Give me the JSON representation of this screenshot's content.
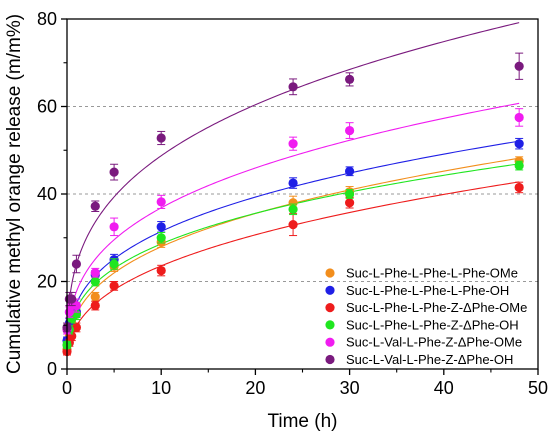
{
  "chart_data": {
    "type": "scatter",
    "title": "",
    "xlabel": "Time (h)",
    "ylabel": "Cumulative methyl orange release (m/m%)",
    "xlim": [
      0,
      50
    ],
    "ylim": [
      0,
      80
    ],
    "xticks": [
      0,
      10,
      20,
      30,
      40,
      50
    ],
    "yticks": [
      0,
      20,
      40,
      60,
      80
    ],
    "grid": "horizontal dashed at 20, 40, 60",
    "legend_position": "bottom-right",
    "x": [
      0,
      0.25,
      0.5,
      1,
      3,
      5,
      10,
      24,
      30,
      48
    ],
    "series": [
      {
        "name": "Suc-L-Phe-L-Phe-L-Phe-OMe",
        "color": "#f28e1c",
        "values": [
          4.5,
          7.5,
          10.5,
          12.5,
          16.5,
          23.5,
          29,
          38,
          40.5,
          47.5
        ],
        "errors": [
          0.8,
          1.0,
          1.0,
          1.2,
          1.0,
          1.2,
          1.2,
          1.5,
          1.2,
          1.0
        ]
      },
      {
        "name": "Suc-L-Phe-L-Phe-L-Phe-OH",
        "color": "#1f1fe6",
        "values": [
          6.5,
          10.5,
          12,
          13,
          21.5,
          25,
          32.5,
          42.5,
          45.2,
          51.5
        ],
        "errors": [
          0.8,
          1.0,
          1.0,
          1.2,
          1.0,
          1.2,
          1.2,
          1.2,
          1.0,
          1.2
        ]
      },
      {
        "name": "Suc-L-Phe-L-Phe-Z-ΔPhe-OMe",
        "color": "#ee1c1c",
        "values": [
          4,
          6,
          7.5,
          9.5,
          14.5,
          19,
          22.5,
          33,
          38,
          41.5
        ],
        "errors": [
          0.8,
          0.8,
          1.0,
          1.0,
          1.0,
          1.0,
          1.2,
          2.5,
          1.2,
          1.2
        ]
      },
      {
        "name": "Suc-L-Phe-L-Phe-Z-ΔPhe-OH",
        "color": "#1fe61f",
        "values": [
          5.5,
          9,
          11.5,
          12.5,
          20,
          24,
          30,
          36.5,
          40,
          46.5
        ],
        "errors": [
          0.8,
          1.0,
          1.0,
          1.2,
          1.0,
          1.2,
          1.2,
          1.2,
          1.0,
          1.0
        ]
      },
      {
        "name": "Suc-L-Val-L-Phe-Z-ΔPhe-OMe",
        "color": "#f01cf0",
        "values": [
          9,
          13,
          14.5,
          14.5,
          22,
          32.5,
          38.2,
          51.5,
          54.5,
          57.5
        ],
        "errors": [
          1.0,
          1.2,
          1.2,
          1.5,
          1.0,
          2.0,
          1.5,
          1.5,
          1.8,
          2.0
        ]
      },
      {
        "name": "Suc-L-Val-L-Phe-Z-ΔPhe-OH",
        "color": "#7a1a7e",
        "values": [
          9.5,
          16,
          16,
          24,
          37.2,
          45,
          52.8,
          64.5,
          66.2,
          69.2
        ],
        "errors": [
          1.0,
          1.5,
          1.5,
          2.0,
          1.2,
          1.8,
          1.5,
          1.8,
          1.5,
          3.0
        ]
      }
    ]
  }
}
